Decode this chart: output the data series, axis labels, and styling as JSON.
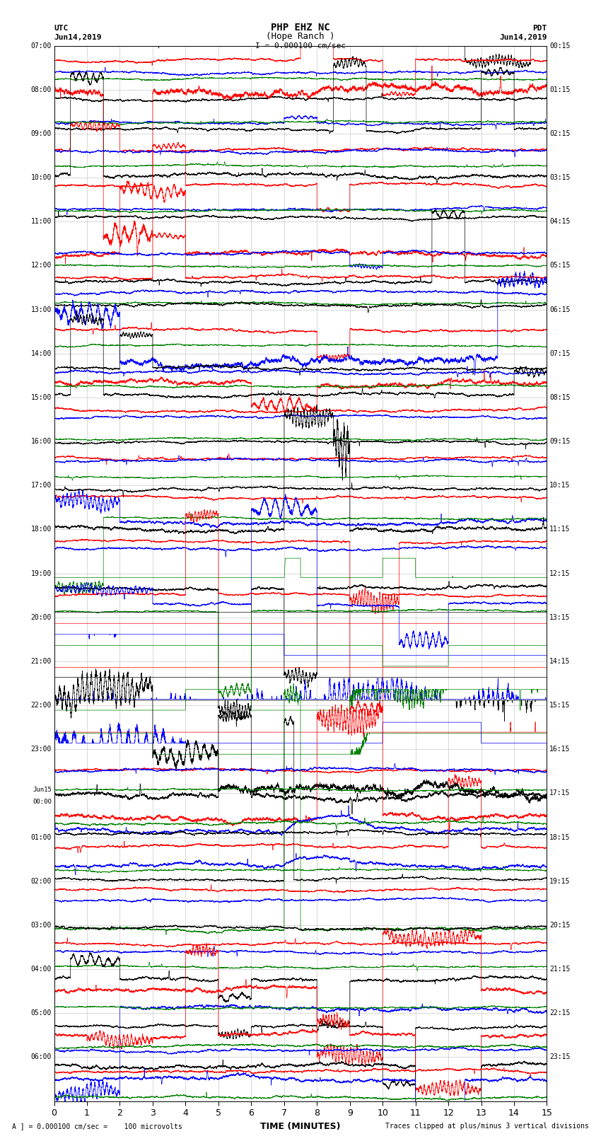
{
  "title_line1": "PHP EHZ NC",
  "title_line2": "(Hope Ranch )",
  "scale_label": "I = 0.000100 cm/sec",
  "left_header_line1": "UTC",
  "left_header_line2": "Jun14,2019",
  "right_header_line1": "PDT",
  "right_header_line2": "Jun14,2019",
  "xlabel": "TIME (MINUTES)",
  "footer_left": "A ] = 0.000100 cm/sec =    100 microvolts",
  "footer_right": "Traces clipped at plus/minus 3 vertical divisions",
  "xlim": [
    0,
    15
  ],
  "xticks": [
    0,
    1,
    2,
    3,
    4,
    5,
    6,
    7,
    8,
    9,
    10,
    11,
    12,
    13,
    14,
    15
  ],
  "utc_labels": [
    "07:00",
    "08:00",
    "09:00",
    "10:00",
    "11:00",
    "12:00",
    "13:00",
    "14:00",
    "15:00",
    "16:00",
    "17:00",
    "18:00",
    "19:00",
    "20:00",
    "21:00",
    "22:00",
    "23:00",
    "Jun15\n00:00",
    "01:00",
    "02:00",
    "03:00",
    "04:00",
    "05:00",
    "06:00"
  ],
  "pdt_labels": [
    "00:15",
    "01:15",
    "02:15",
    "03:15",
    "04:15",
    "05:15",
    "06:15",
    "07:15",
    "08:15",
    "09:15",
    "10:15",
    "11:15",
    "12:15",
    "13:15",
    "14:15",
    "15:15",
    "16:15",
    "17:15",
    "18:15",
    "19:15",
    "20:15",
    "21:15",
    "22:15",
    "23:15"
  ],
  "n_rows": 24,
  "colors_cycle": [
    "black",
    "red",
    "blue",
    "green"
  ],
  "background_color": "white",
  "grid_color": "#bbbbbb",
  "figsize": [
    8.5,
    16.13
  ],
  "dpi": 100
}
